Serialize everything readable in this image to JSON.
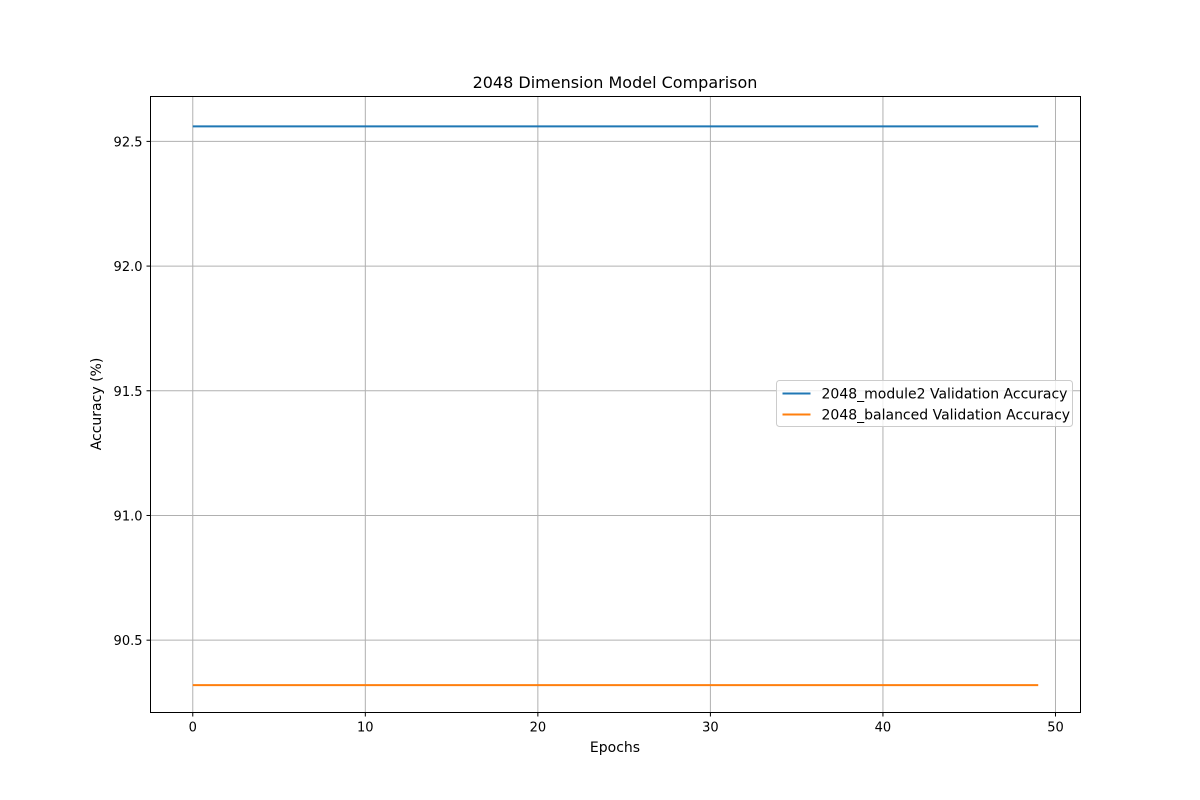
{
  "chart_data": {
    "type": "line",
    "title": "2048 Dimension Model Comparison",
    "xlabel": "Epochs",
    "ylabel": "Accuracy (%)",
    "xlim": [
      -2.45,
      51.45
    ],
    "ylim": [
      90.21,
      92.68
    ],
    "xticks": [
      0,
      10,
      20,
      30,
      40,
      50
    ],
    "yticks": [
      90.5,
      91.0,
      91.5,
      92.0,
      92.5
    ],
    "xtick_labels": [
      "0",
      "10",
      "20",
      "30",
      "40",
      "50"
    ],
    "ytick_labels": [
      "90.5",
      "91.0",
      "91.5",
      "92.0",
      "92.5"
    ],
    "grid": true,
    "legend_position": "center-right",
    "x": [
      0,
      49
    ],
    "series": [
      {
        "name": "2048_module2 Validation Accuracy",
        "color": "#1f77b4",
        "values": [
          92.56,
          92.56
        ]
      },
      {
        "name": "2048_balanced Validation Accuracy",
        "color": "#ff7f0e",
        "values": [
          90.32,
          90.32
        ]
      }
    ]
  }
}
